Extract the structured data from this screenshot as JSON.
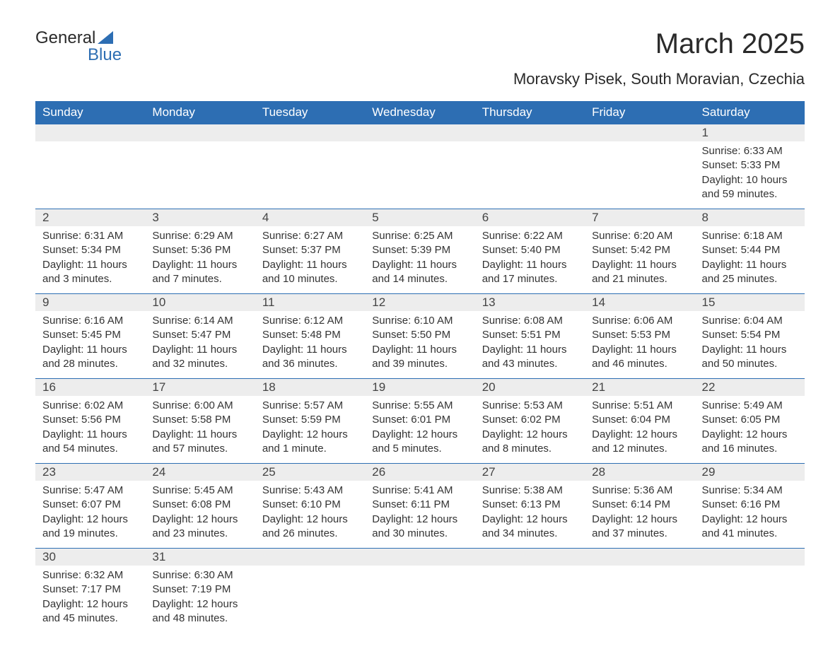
{
  "logo": {
    "text1": "General",
    "text2": "Blue",
    "triangle_color": "#2d6eb3"
  },
  "header": {
    "month_title": "March 2025",
    "location": "Moravsky Pisek, South Moravian, Czechia"
  },
  "styling": {
    "header_bg": "#2d6eb3",
    "header_text": "#ffffff",
    "row_separator": "#2d6eb3",
    "day_number_bg": "#ededed",
    "body_text": "#333333",
    "title_fontsize": 40,
    "location_fontsize": 22,
    "cell_fontsize": 15
  },
  "weekdays": [
    "Sunday",
    "Monday",
    "Tuesday",
    "Wednesday",
    "Thursday",
    "Friday",
    "Saturday"
  ],
  "weeks": [
    {
      "numbers": [
        "",
        "",
        "",
        "",
        "",
        "",
        "1"
      ],
      "content": [
        "",
        "",
        "",
        "",
        "",
        "",
        "Sunrise: 6:33 AM\nSunset: 5:33 PM\nDaylight: 10 hours and 59 minutes."
      ]
    },
    {
      "numbers": [
        "2",
        "3",
        "4",
        "5",
        "6",
        "7",
        "8"
      ],
      "content": [
        "Sunrise: 6:31 AM\nSunset: 5:34 PM\nDaylight: 11 hours and 3 minutes.",
        "Sunrise: 6:29 AM\nSunset: 5:36 PM\nDaylight: 11 hours and 7 minutes.",
        "Sunrise: 6:27 AM\nSunset: 5:37 PM\nDaylight: 11 hours and 10 minutes.",
        "Sunrise: 6:25 AM\nSunset: 5:39 PM\nDaylight: 11 hours and 14 minutes.",
        "Sunrise: 6:22 AM\nSunset: 5:40 PM\nDaylight: 11 hours and 17 minutes.",
        "Sunrise: 6:20 AM\nSunset: 5:42 PM\nDaylight: 11 hours and 21 minutes.",
        "Sunrise: 6:18 AM\nSunset: 5:44 PM\nDaylight: 11 hours and 25 minutes."
      ]
    },
    {
      "numbers": [
        "9",
        "10",
        "11",
        "12",
        "13",
        "14",
        "15"
      ],
      "content": [
        "Sunrise: 6:16 AM\nSunset: 5:45 PM\nDaylight: 11 hours and 28 minutes.",
        "Sunrise: 6:14 AM\nSunset: 5:47 PM\nDaylight: 11 hours and 32 minutes.",
        "Sunrise: 6:12 AM\nSunset: 5:48 PM\nDaylight: 11 hours and 36 minutes.",
        "Sunrise: 6:10 AM\nSunset: 5:50 PM\nDaylight: 11 hours and 39 minutes.",
        "Sunrise: 6:08 AM\nSunset: 5:51 PM\nDaylight: 11 hours and 43 minutes.",
        "Sunrise: 6:06 AM\nSunset: 5:53 PM\nDaylight: 11 hours and 46 minutes.",
        "Sunrise: 6:04 AM\nSunset: 5:54 PM\nDaylight: 11 hours and 50 minutes."
      ]
    },
    {
      "numbers": [
        "16",
        "17",
        "18",
        "19",
        "20",
        "21",
        "22"
      ],
      "content": [
        "Sunrise: 6:02 AM\nSunset: 5:56 PM\nDaylight: 11 hours and 54 minutes.",
        "Sunrise: 6:00 AM\nSunset: 5:58 PM\nDaylight: 11 hours and 57 minutes.",
        "Sunrise: 5:57 AM\nSunset: 5:59 PM\nDaylight: 12 hours and 1 minute.",
        "Sunrise: 5:55 AM\nSunset: 6:01 PM\nDaylight: 12 hours and 5 minutes.",
        "Sunrise: 5:53 AM\nSunset: 6:02 PM\nDaylight: 12 hours and 8 minutes.",
        "Sunrise: 5:51 AM\nSunset: 6:04 PM\nDaylight: 12 hours and 12 minutes.",
        "Sunrise: 5:49 AM\nSunset: 6:05 PM\nDaylight: 12 hours and 16 minutes."
      ]
    },
    {
      "numbers": [
        "23",
        "24",
        "25",
        "26",
        "27",
        "28",
        "29"
      ],
      "content": [
        "Sunrise: 5:47 AM\nSunset: 6:07 PM\nDaylight: 12 hours and 19 minutes.",
        "Sunrise: 5:45 AM\nSunset: 6:08 PM\nDaylight: 12 hours and 23 minutes.",
        "Sunrise: 5:43 AM\nSunset: 6:10 PM\nDaylight: 12 hours and 26 minutes.",
        "Sunrise: 5:41 AM\nSunset: 6:11 PM\nDaylight: 12 hours and 30 minutes.",
        "Sunrise: 5:38 AM\nSunset: 6:13 PM\nDaylight: 12 hours and 34 minutes.",
        "Sunrise: 5:36 AM\nSunset: 6:14 PM\nDaylight: 12 hours and 37 minutes.",
        "Sunrise: 5:34 AM\nSunset: 6:16 PM\nDaylight: 12 hours and 41 minutes."
      ]
    },
    {
      "numbers": [
        "30",
        "31",
        "",
        "",
        "",
        "",
        ""
      ],
      "content": [
        "Sunrise: 6:32 AM\nSunset: 7:17 PM\nDaylight: 12 hours and 45 minutes.",
        "Sunrise: 6:30 AM\nSunset: 7:19 PM\nDaylight: 12 hours and 48 minutes.",
        "",
        "",
        "",
        "",
        ""
      ]
    }
  ]
}
